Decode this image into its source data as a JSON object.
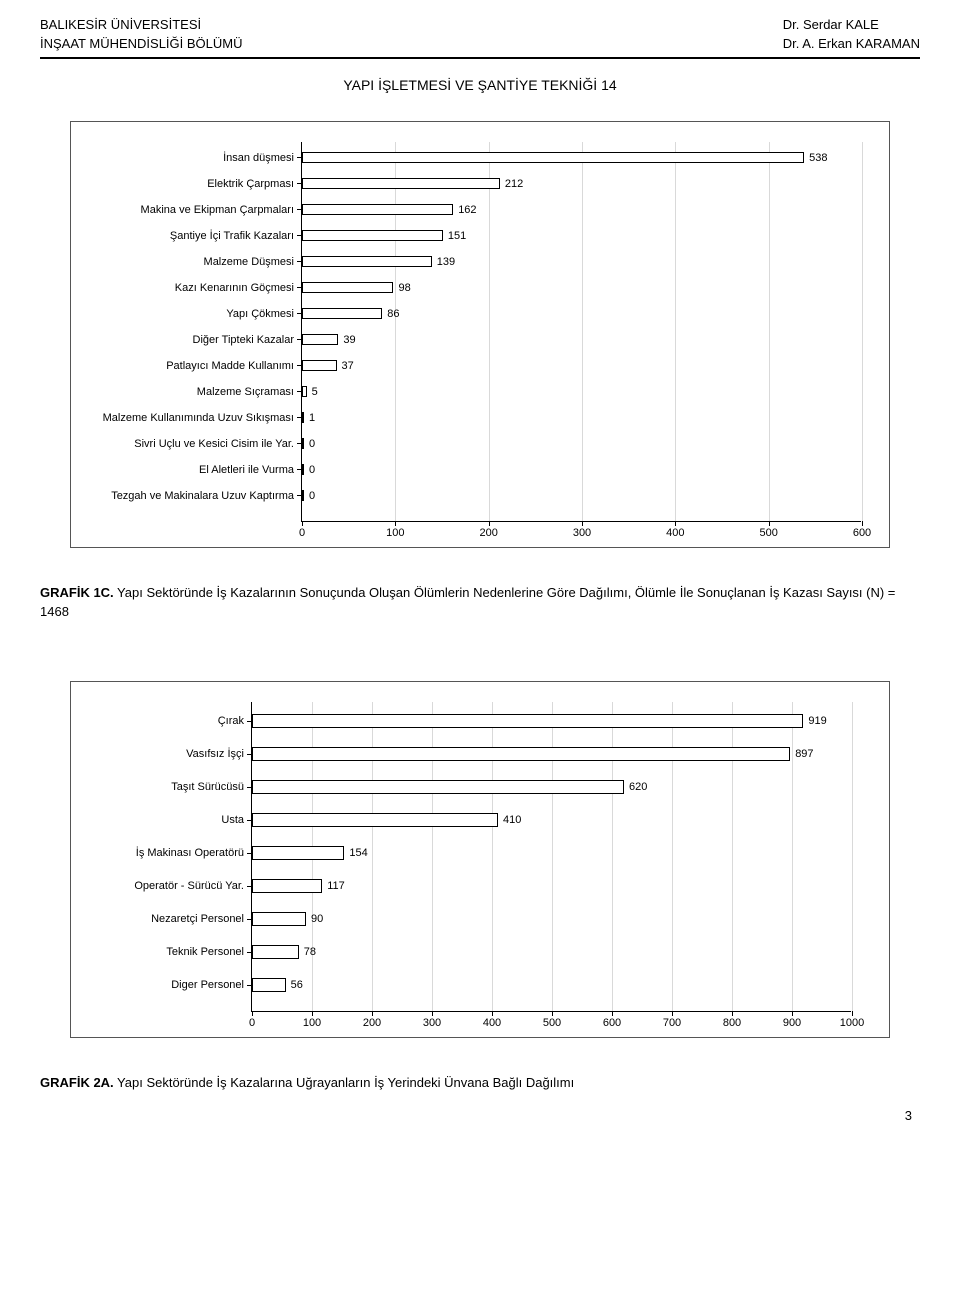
{
  "header": {
    "left_line1": "BALIKESİR ÜNİVERSİTESİ",
    "left_line2": "İNŞAAT MÜHENDİSLİĞİ BÖLÜMÜ",
    "right_line1": "Dr. Serdar KALE",
    "right_line2": "Dr. A. Erkan KARAMAN"
  },
  "title": "YAPI İŞLETMESİ VE ŞANTİYE TEKNİĞİ 14",
  "chart1": {
    "type": "bar-horizontal",
    "xlim": [
      0,
      600
    ],
    "xtick_step": 100,
    "bar_fill": "#ffffff",
    "bar_border": "#000000",
    "grid_color": "#d9d9d9",
    "label_fontsize": 11,
    "categories": [
      "İnsan düşmesi",
      "Elektrik Çarpması",
      "Makina ve Ekipman Çarpmaları",
      "Şantiye İçi Trafik Kazaları",
      "Malzeme Düşmesi",
      "Kazı Kenarının Göçmesi",
      "Yapı Çökmesi",
      "Diğer Tipteki Kazalar",
      "Patlayıcı Madde Kullanımı",
      "Malzeme Sıçraması",
      "Malzeme Kullanımında Uzuv Sıkışması",
      "Sivri Uçlu ve Kesici Cisim ile Yar.",
      "El Aletleri ile Vurma",
      "Tezgah ve Makinalara Uzuv Kaptırma"
    ],
    "values": [
      538,
      212,
      162,
      151,
      139,
      98,
      86,
      39,
      37,
      5,
      1,
      0,
      0,
      0
    ]
  },
  "caption1": {
    "bold": "GRAFİK 1C.",
    "text": " Yapı Sektöründe İş Kazalarının Sonuçunda Oluşan Ölümlerin Nedenlerine Göre Dağılımı, Ölümle İle Sonuçlanan İş Kazası Sayısı (N) = 1468"
  },
  "chart2": {
    "type": "bar-horizontal",
    "xlim": [
      0,
      1000
    ],
    "xtick_step": 100,
    "bar_fill": "#ffffff",
    "bar_border": "#000000",
    "grid_color": "#d9d9d9",
    "label_fontsize": 11,
    "categories": [
      "Çırak",
      "Vasıfsız İşçi",
      "Taşıt Sürücüsü",
      "Usta",
      "İş Makinası Operatörü",
      "Operatör - Sürücü Yar.",
      "Nezaretçi Personel",
      "Teknik Personel",
      "Diger Personel"
    ],
    "values": [
      919,
      897,
      620,
      410,
      154,
      117,
      90,
      78,
      56
    ]
  },
  "caption2": {
    "bold": "GRAFİK 2A.",
    "text": " Yapı Sektöründe İş Kazalarına Uğrayanların İş Yerindeki Ünvana Bağlı Dağılımı"
  },
  "pagenum": "3"
}
